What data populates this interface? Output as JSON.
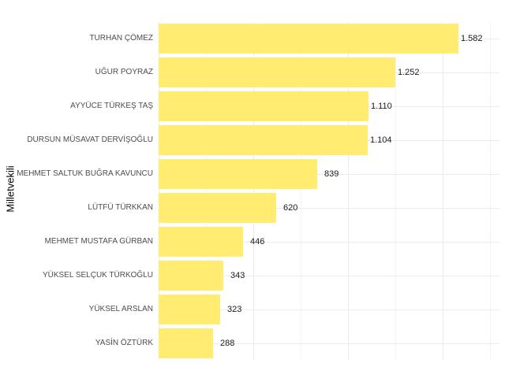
{
  "chart_data": {
    "type": "bar",
    "orientation": "horizontal",
    "title": "",
    "xlabel": "",
    "ylabel": "Milletvekili",
    "categories": [
      "TURHAN ÇÖMEZ",
      "UĞUR POYRAZ",
      "AYYÜCE TÜRKEŞ TAŞ",
      "DURSUN MÜSAVAT DERVİŞOĞLU",
      "MEHMET SALTUK BUĞRA KAVUNCU",
      "LÜTFÜ TÜRKKAN",
      "MEHMET MUSTAFA GÜRBAN",
      "YÜKSEL SELÇUK TÜRKOĞLU",
      "YÜKSEL ARSLAN",
      "YASİN ÖZTÜRK"
    ],
    "values": [
      1582,
      1252,
      1110,
      1104,
      839,
      620,
      446,
      343,
      323,
      288
    ],
    "value_labels": [
      "1.582",
      "1.252",
      "1.110",
      "1.104",
      "839",
      "620",
      "446",
      "343",
      "323",
      "288"
    ],
    "xlim": [
      0,
      1800
    ],
    "x_major_grid": [
      0,
      500,
      1000,
      1500
    ],
    "x_minor_grid": [
      250,
      750,
      1250,
      1750
    ],
    "x_tick_labels_shown": false,
    "grid": true,
    "legend": "none",
    "bar_color": "#FFEC70"
  }
}
